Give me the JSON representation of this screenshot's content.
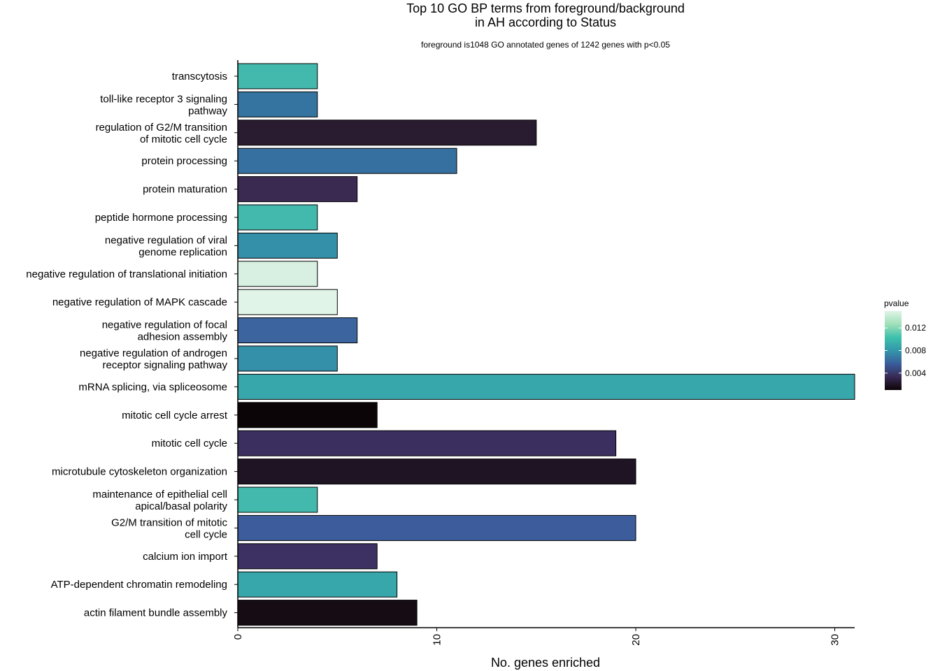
{
  "chart_data": {
    "type": "bar",
    "orientation": "horizontal",
    "title_line1": "Top 10 GO BP terms from foreground/background",
    "title_line2": "in AH according to Status",
    "subtitle": "foreground is1048 GO annotated genes of 1242 genes with p<0.05",
    "xlabel": "No. genes enriched",
    "ylabel": "",
    "xlim": [
      0,
      31
    ],
    "x_ticks": [
      "0",
      "10",
      "20",
      "30"
    ],
    "legend": {
      "title": "pvalue",
      "position": "right",
      "ticks": [
        "0.004",
        "0.008",
        "0.012"
      ],
      "range": [
        0.001,
        0.015
      ],
      "colors": [
        "#0b0405",
        "#382a54",
        "#395d9c",
        "#3496a9",
        "#3ec1ac",
        "#a0dfb9",
        "#def5e5"
      ]
    },
    "categories": [
      "transcytosis",
      "toll-like receptor 3 signaling\npathway",
      "regulation of G2/M transition\nof mitotic cell cycle",
      "protein processing",
      "protein maturation",
      "peptide hormone processing",
      "negative regulation of viral\ngenome replication",
      "negative regulation of translational initiation",
      "negative regulation of MAPK cascade",
      "negative regulation of focal\nadhesion assembly",
      "negative regulation of androgen\nreceptor signaling pathway",
      "mRNA splicing, via spliceosome",
      "mitotic cell cycle arrest",
      "mitotic cell cycle",
      "microtubule cytoskeleton organization",
      "maintenance of epithelial cell\napical/basal polarity",
      "G2/M transition of mitotic\ncell cycle",
      "calcium ion import",
      "ATP-dependent chromatin remodeling",
      "actin filament bundle assembly"
    ],
    "values": [
      4,
      4,
      15,
      11,
      6,
      4,
      5,
      4,
      5,
      6,
      5,
      31,
      7,
      19,
      20,
      4,
      20,
      7,
      8,
      9
    ],
    "bar_colors": [
      "#43b8ad",
      "#3574a0",
      "#2a1c30",
      "#3570a0",
      "#3a2a52",
      "#43b8ad",
      "#3490a8",
      "#d8f0e2",
      "#e0f5e7",
      "#3c65a0",
      "#3490a8",
      "#38a7ab",
      "#0c0507",
      "#3b2f60",
      "#1f1424",
      "#43b8ad",
      "#3d5c9c",
      "#3d3063",
      "#38a7ab",
      "#150c14"
    ]
  }
}
